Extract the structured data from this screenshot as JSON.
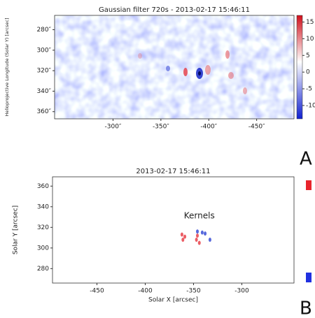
{
  "chart_data": [
    {
      "type": "image",
      "title": "Gaussian filter 720s - 2013-02-17 15:46:11",
      "y_label": "Helioprojective Longitude (Solar Y) [arcsec]",
      "xlim": [
        -239,
        -489
      ],
      "xticks": [
        {
          "value": -300,
          "label": "-300″"
        },
        {
          "value": -350,
          "label": "-350″"
        },
        {
          "value": -400,
          "label": "-400″"
        },
        {
          "value": -450,
          "label": "-450″"
        }
      ],
      "ylim": [
        367,
        266
      ],
      "yticks": [
        {
          "value": 280,
          "label": "280″"
        },
        {
          "value": 300,
          "label": "300″"
        },
        {
          "value": 320,
          "label": "320″"
        },
        {
          "value": 340,
          "label": "340″"
        },
        {
          "value": 360,
          "label": "360″"
        }
      ],
      "clim": [
        -14,
        17
      ],
      "cticks": [
        15,
        10,
        5,
        0,
        -5,
        -10
      ]
    },
    {
      "type": "scatter",
      "title": "2013-02-17 15:46:11",
      "x_label": "Solar X [arcsec]",
      "y_label": "Solar Y [arcsec]",
      "xlim": [
        -496,
        -246
      ],
      "xticks": [
        -450,
        -400,
        -350,
        -300
      ],
      "ylim": [
        266,
        369
      ],
      "yticks": [
        280,
        300,
        320,
        340,
        360
      ],
      "annotation": {
        "text": "Kernels",
        "x": -344,
        "y": 331
      },
      "series": [
        {
          "color": "#e8424a",
          "x": [
            -362,
            -361,
            -359,
            -347,
            -346,
            -344
          ],
          "y": [
            313,
            308,
            311,
            308,
            312,
            305
          ]
        },
        {
          "color": "#3a4fd6",
          "x": [
            -346,
            -341,
            -338,
            -333
          ],
          "y": [
            316,
            315,
            314,
            308
          ]
        }
      ]
    }
  ],
  "panel_labels": [
    "A",
    "B"
  ]
}
